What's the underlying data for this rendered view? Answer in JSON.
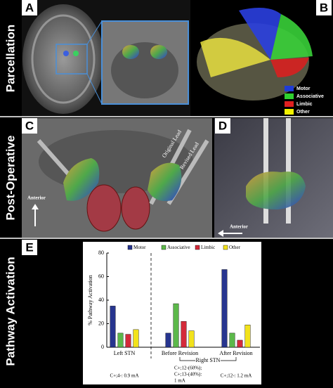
{
  "row_labels": [
    "Parcellation",
    "Post-Operative",
    "Pathway Activation"
  ],
  "panel_labels": [
    "A",
    "B",
    "C",
    "D",
    "E"
  ],
  "tractography_legend": [
    {
      "name": "Motor",
      "color": "#1f3cd6"
    },
    {
      "name": "Associative",
      "color": "#2fd12f"
    },
    {
      "name": "Limbic",
      "color": "#e02020"
    },
    {
      "name": "Other",
      "color": "#f2f200"
    }
  ],
  "panel_c": {
    "anterior": "Anterior",
    "original_lead": "Original Lead",
    "revised_lead": "Revised Lead"
  },
  "panel_d": {
    "anterior": "Anterior"
  },
  "chart_data": {
    "type": "bar",
    "y_label": "% Pathway Activation",
    "categories": [
      "Left STN",
      "Before Revision",
      "After Revision"
    ],
    "group_label": "Right STN",
    "annotations": [
      [
        "C+;4-: 0.9 mA"
      ],
      [
        "C+;12-(60%);",
        "C+;13-(40%):",
        "1 mA"
      ],
      [
        "C+;12-: 1.2 mA"
      ]
    ],
    "series": [
      {
        "name": "Motor",
        "color": "#27358f",
        "values": [
          35,
          12,
          66
        ]
      },
      {
        "name": "Associative",
        "color": "#5cb84a",
        "values": [
          12,
          37,
          12
        ]
      },
      {
        "name": "Limbic",
        "color": "#d42a3a",
        "values": [
          11,
          22,
          6
        ]
      },
      {
        "name": "Other",
        "color": "#f2e21c",
        "values": [
          15,
          14,
          19
        ]
      }
    ],
    "ylim": [
      0,
      80
    ],
    "yticks": [
      0,
      20,
      40,
      60,
      80
    ]
  }
}
